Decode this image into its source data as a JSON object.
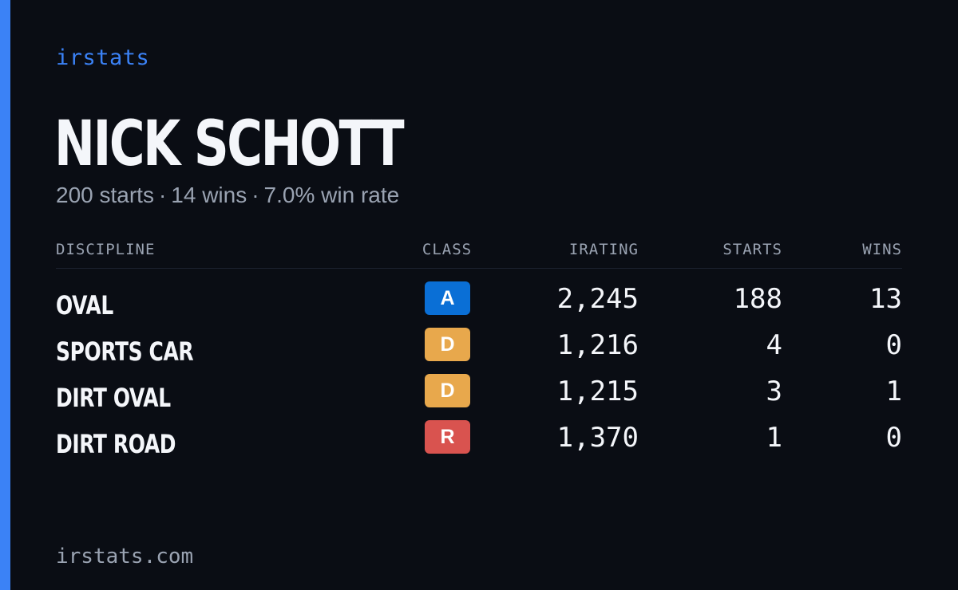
{
  "brand": "irstats",
  "driver": {
    "name": "NICK SCHOTT",
    "starts_text": "200 starts",
    "separator": "·",
    "wins_text": "14 wins",
    "win_rate_text": "7.0% win rate"
  },
  "table": {
    "headers": {
      "discipline": "DISCIPLINE",
      "class": "CLASS",
      "irating": "IRATING",
      "starts": "STARTS",
      "wins": "WINS"
    },
    "rows": [
      {
        "discipline": "OVAL",
        "class": "A",
        "class_color": "#0a6fd6",
        "irating": "2,245",
        "starts": "188",
        "wins": "13"
      },
      {
        "discipline": "SPORTS CAR",
        "class": "D",
        "class_color": "#e8a84c",
        "irating": "1,216",
        "starts": "4",
        "wins": "0"
      },
      {
        "discipline": "DIRT OVAL",
        "class": "D",
        "class_color": "#e8a84c",
        "irating": "1,215",
        "starts": "3",
        "wins": "1"
      },
      {
        "discipline": "DIRT ROAD",
        "class": "R",
        "class_color": "#d9534f",
        "irating": "1,370",
        "starts": "1",
        "wins": "0"
      }
    ]
  },
  "footer": {
    "site": "irstats.com"
  },
  "colors": {
    "accent": "#3b82f6",
    "background": "#0a0d14",
    "muted_text": "#9aa3b2",
    "primary_text": "#f4f6fa"
  }
}
